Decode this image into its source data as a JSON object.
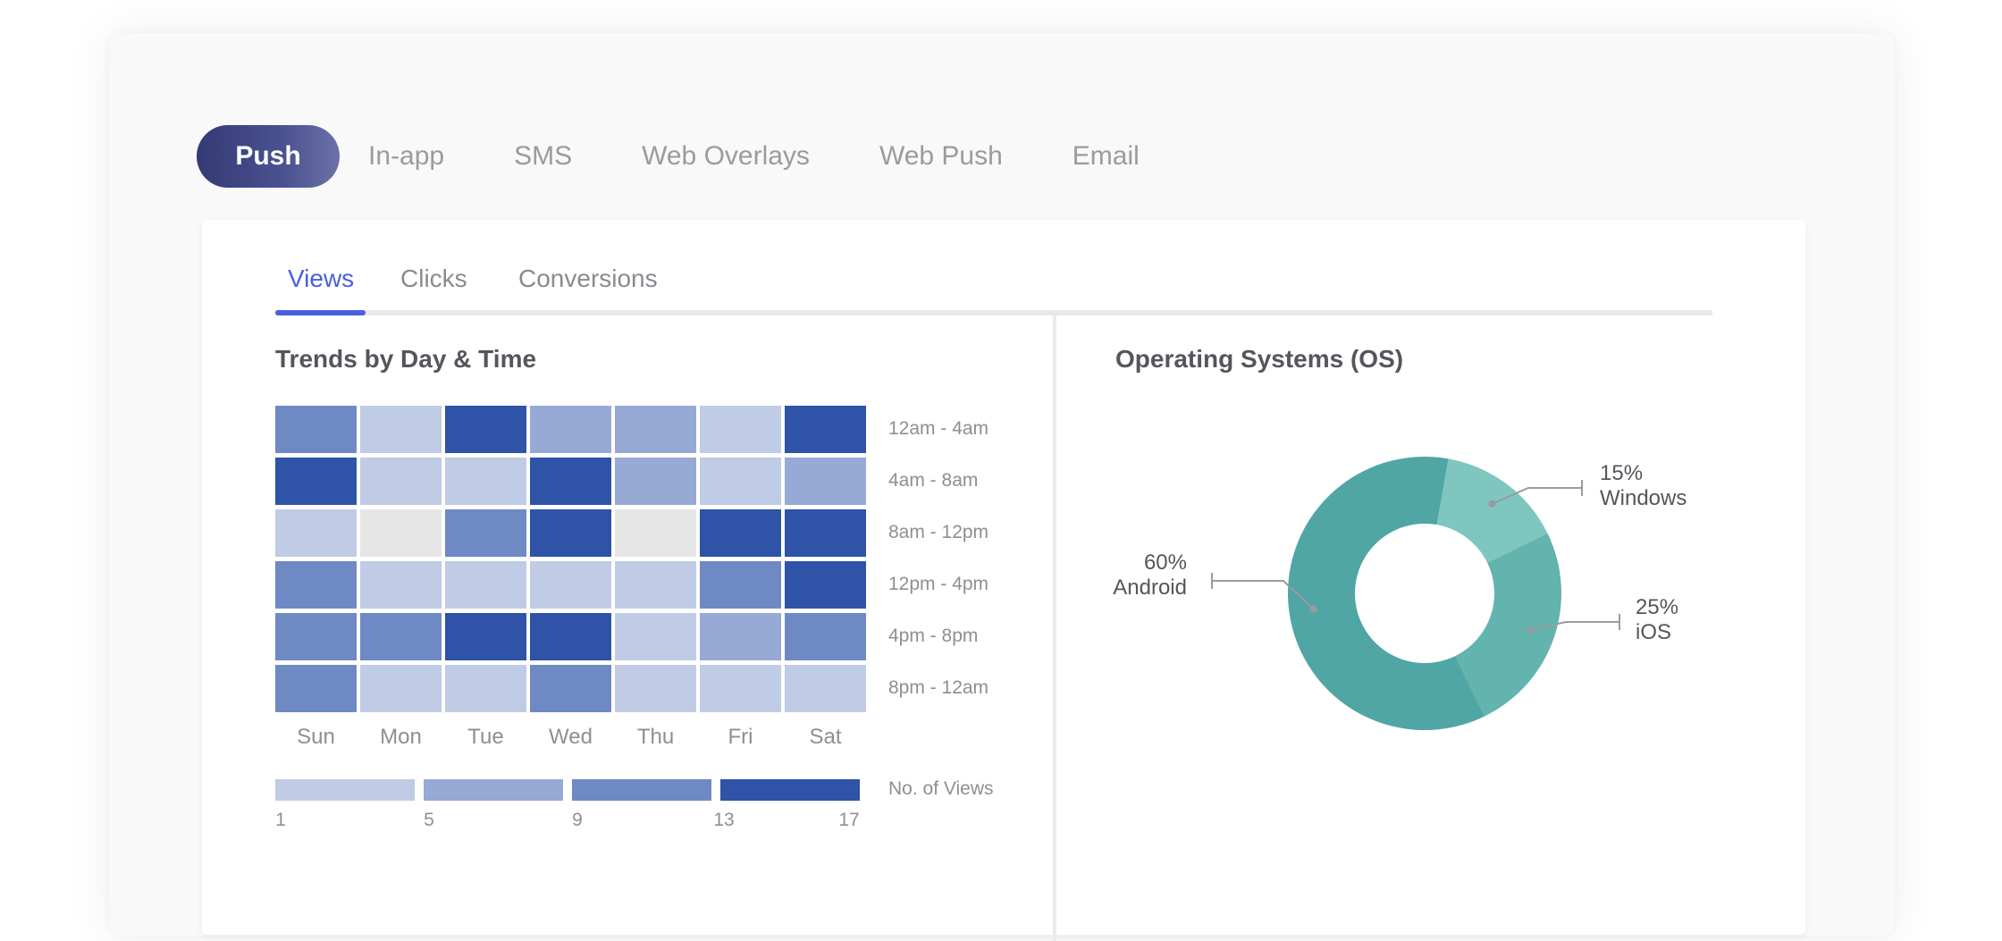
{
  "channel_tabs": [
    "Push",
    "In-app",
    "SMS",
    "Web Overlays",
    "Web Push",
    "Email"
  ],
  "metric_tabs": [
    "Views",
    "Clicks",
    "Conversions"
  ],
  "heatmap": {
    "title": "Trends by Day & Time",
    "days": [
      "Sun",
      "Mon",
      "Tue",
      "Wed",
      "Thu",
      "Fri",
      "Sat"
    ],
    "times": [
      "12am - 4am",
      "4am - 8am",
      "8am - 12pm",
      "12pm - 4pm",
      "4pm - 8pm",
      "8pm - 12am"
    ],
    "levels": [
      [
        3,
        1,
        4,
        2,
        2,
        1,
        4
      ],
      [
        4,
        1,
        1,
        4,
        2,
        1,
        2
      ],
      [
        1,
        0,
        3,
        4,
        0,
        4,
        4
      ],
      [
        3,
        1,
        1,
        1,
        1,
        3,
        4
      ],
      [
        3,
        3,
        4,
        4,
        1,
        2,
        3
      ],
      [
        3,
        1,
        1,
        3,
        1,
        1,
        1
      ]
    ],
    "colors": [
      "#e6e6e6",
      "#c0cbe5",
      "#97a9d5",
      "#6f89c4",
      "#2e53a7"
    ],
    "legend": {
      "title": "No. of Views",
      "ticks": [
        "1",
        "5",
        "9",
        "13",
        "17"
      ]
    }
  },
  "os": {
    "title": "Operating Systems (OS)",
    "slices": [
      {
        "name": "Windows",
        "value": 15,
        "pct_label": "15%",
        "color": "#7fc6c1"
      },
      {
        "name": "iOS",
        "value": 25,
        "pct_label": "25%",
        "color": "#63b3ae"
      },
      {
        "name": "Android",
        "value": 60,
        "pct_label": "60%",
        "color": "#4fa6a5"
      }
    ]
  }
}
